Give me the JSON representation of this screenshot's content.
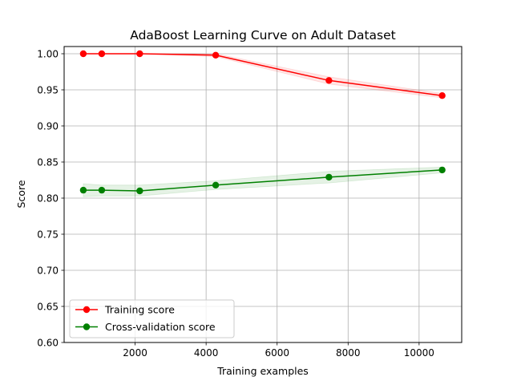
{
  "chart_data": {
    "type": "line",
    "title": "AdaBoost Learning Curve on Adult Dataset",
    "xlabel": "Training examples",
    "ylabel": "Score",
    "xlim": [
      0,
      11200
    ],
    "ylim": [
      0.6,
      1.01
    ],
    "xticks": [
      2000,
      4000,
      6000,
      8000,
      10000
    ],
    "xtick_labels": [
      "2000",
      "4000",
      "6000",
      "8000",
      "10000"
    ],
    "yticks": [
      0.6,
      0.65,
      0.7,
      0.75,
      0.8,
      0.85,
      0.9,
      0.95,
      1.0
    ],
    "ytick_labels": [
      "0.60",
      "0.65",
      "0.70",
      "0.75",
      "0.80",
      "0.85",
      "0.90",
      "0.95",
      "1.00"
    ],
    "grid": true,
    "legend_position": "lower-left",
    "x": [
      540,
      1060,
      2130,
      4270,
      7460,
      10650
    ],
    "series": [
      {
        "name": "Training score",
        "color": "#ff0000",
        "values": [
          1.0,
          1.0,
          1.0,
          0.998,
          0.963,
          0.942
        ],
        "band_lower": [
          1.0,
          1.0,
          1.0,
          0.996,
          0.958,
          0.939
        ],
        "band_upper": [
          1.0,
          1.0,
          1.0,
          1.0,
          0.968,
          0.945
        ]
      },
      {
        "name": "Cross-validation score",
        "color": "#008000",
        "values": [
          0.811,
          0.811,
          0.81,
          0.818,
          0.829,
          0.839
        ],
        "band_lower": [
          0.802,
          0.803,
          0.803,
          0.812,
          0.821,
          0.835
        ],
        "band_upper": [
          0.82,
          0.818,
          0.818,
          0.824,
          0.837,
          0.843
        ]
      }
    ]
  }
}
